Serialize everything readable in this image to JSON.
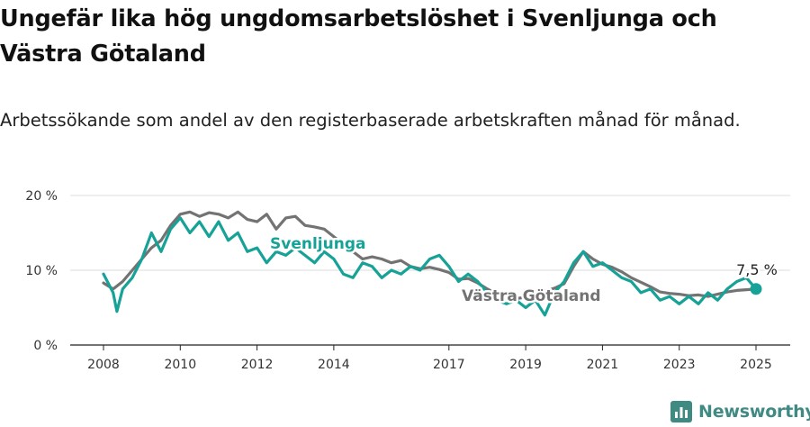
{
  "title": "Ungefär lika hög ungdomsarbetslöshet i Svenljunga och Västra Götaland",
  "subtitle": "Arbetssökande som andel av den registerbaserade arbetskraften månad för månad.",
  "brand": "Newsworthy",
  "colors": {
    "svenljunga": "#17a297",
    "vastra_gotaland": "#737373",
    "grid": "#dcdcdc",
    "axis": "#222222",
    "brand": "#3f8a83"
  },
  "chart_data": {
    "type": "line",
    "ylim": [
      0,
      20
    ],
    "xlim": [
      2007.5,
      2025.6
    ],
    "y_ticks": [
      {
        "value": 0,
        "label": "0 %"
      },
      {
        "value": 10,
        "label": "10 %"
      },
      {
        "value": 20,
        "label": "20 %"
      }
    ],
    "x_ticks": [
      {
        "value": 2008,
        "label": "2008"
      },
      {
        "value": 2010,
        "label": "2010"
      },
      {
        "value": 2012,
        "label": "2012"
      },
      {
        "value": 2014,
        "label": "2014"
      },
      {
        "value": 2017,
        "label": "2017"
      },
      {
        "value": 2019,
        "label": "2019"
      },
      {
        "value": 2021,
        "label": "2021"
      },
      {
        "value": 2023,
        "label": "2023"
      },
      {
        "value": 2025,
        "label": "2025"
      }
    ],
    "grid": true,
    "last_value_label": "7,5 %",
    "series": [
      {
        "name": "Västra Götaland",
        "key": "vastra_gotaland",
        "points": [
          [
            2008.0,
            8.3
          ],
          [
            2008.25,
            7.5
          ],
          [
            2008.5,
            8.5
          ],
          [
            2008.75,
            10.0
          ],
          [
            2009.0,
            11.5
          ],
          [
            2009.25,
            13.0
          ],
          [
            2009.5,
            14.0
          ],
          [
            2009.75,
            16.0
          ],
          [
            2010.0,
            17.5
          ],
          [
            2010.25,
            17.8
          ],
          [
            2010.5,
            17.2
          ],
          [
            2010.75,
            17.7
          ],
          [
            2011.0,
            17.5
          ],
          [
            2011.25,
            17.0
          ],
          [
            2011.5,
            17.8
          ],
          [
            2011.75,
            16.8
          ],
          [
            2012.0,
            16.5
          ],
          [
            2012.25,
            17.5
          ],
          [
            2012.5,
            15.5
          ],
          [
            2012.75,
            17.0
          ],
          [
            2013.0,
            17.2
          ],
          [
            2013.25,
            16.0
          ],
          [
            2013.5,
            15.8
          ],
          [
            2013.75,
            15.5
          ],
          [
            2014.0,
            14.5
          ],
          [
            2014.25,
            13.5
          ],
          [
            2014.5,
            12.5
          ],
          [
            2014.75,
            11.5
          ],
          [
            2015.0,
            11.8
          ],
          [
            2015.25,
            11.5
          ],
          [
            2015.5,
            11.0
          ],
          [
            2015.75,
            11.3
          ],
          [
            2016.0,
            10.5
          ],
          [
            2016.25,
            10.2
          ],
          [
            2016.5,
            10.4
          ],
          [
            2016.75,
            10.1
          ],
          [
            2017.0,
            9.7
          ],
          [
            2017.25,
            8.8
          ],
          [
            2017.5,
            8.9
          ],
          [
            2017.75,
            8.3
          ],
          [
            2018.0,
            7.5
          ],
          [
            2018.25,
            6.8
          ],
          [
            2018.5,
            6.5
          ],
          [
            2018.75,
            6.2
          ],
          [
            2019.0,
            6.4
          ],
          [
            2019.25,
            6.7
          ],
          [
            2019.5,
            7.2
          ],
          [
            2019.75,
            7.6
          ],
          [
            2020.0,
            8.2
          ],
          [
            2020.25,
            10.5
          ],
          [
            2020.5,
            12.5
          ],
          [
            2020.75,
            11.5
          ],
          [
            2021.0,
            10.8
          ],
          [
            2021.25,
            10.4
          ],
          [
            2021.5,
            9.8
          ],
          [
            2021.75,
            9.0
          ],
          [
            2022.0,
            8.4
          ],
          [
            2022.25,
            7.8
          ],
          [
            2022.5,
            7.1
          ],
          [
            2022.75,
            6.9
          ],
          [
            2023.0,
            6.8
          ],
          [
            2023.25,
            6.6
          ],
          [
            2023.5,
            6.7
          ],
          [
            2023.75,
            6.5
          ],
          [
            2024.0,
            6.8
          ],
          [
            2024.25,
            7.1
          ],
          [
            2024.5,
            7.3
          ],
          [
            2024.75,
            7.4
          ],
          [
            2025.0,
            7.5
          ]
        ],
        "label": "Västra Götaland"
      },
      {
        "name": "Svenljunga",
        "key": "svenljunga",
        "points": [
          [
            2008.0,
            9.5
          ],
          [
            2008.25,
            7.0
          ],
          [
            2008.35,
            4.5
          ],
          [
            2008.5,
            7.5
          ],
          [
            2008.75,
            9.0
          ],
          [
            2009.0,
            11.5
          ],
          [
            2009.25,
            15.0
          ],
          [
            2009.5,
            12.5
          ],
          [
            2009.75,
            15.5
          ],
          [
            2010.0,
            17.0
          ],
          [
            2010.25,
            15.0
          ],
          [
            2010.5,
            16.5
          ],
          [
            2010.75,
            14.5
          ],
          [
            2011.0,
            16.5
          ],
          [
            2011.25,
            14.0
          ],
          [
            2011.5,
            15.0
          ],
          [
            2011.75,
            12.5
          ],
          [
            2012.0,
            13.0
          ],
          [
            2012.25,
            11.0
          ],
          [
            2012.5,
            12.5
          ],
          [
            2012.75,
            12.0
          ],
          [
            2013.0,
            13.0
          ],
          [
            2013.25,
            12.0
          ],
          [
            2013.5,
            11.0
          ],
          [
            2013.75,
            12.5
          ],
          [
            2014.0,
            11.5
          ],
          [
            2014.25,
            9.5
          ],
          [
            2014.5,
            9.0
          ],
          [
            2014.75,
            11.0
          ],
          [
            2015.0,
            10.5
          ],
          [
            2015.25,
            9.0
          ],
          [
            2015.5,
            10.0
          ],
          [
            2015.75,
            9.5
          ],
          [
            2016.0,
            10.5
          ],
          [
            2016.25,
            10.0
          ],
          [
            2016.5,
            11.5
          ],
          [
            2016.75,
            12.0
          ],
          [
            2017.0,
            10.5
          ],
          [
            2017.25,
            8.5
          ],
          [
            2017.5,
            9.5
          ],
          [
            2017.75,
            8.5
          ],
          [
            2018.0,
            7.0
          ],
          [
            2018.25,
            6.0
          ],
          [
            2018.5,
            5.5
          ],
          [
            2018.75,
            6.0
          ],
          [
            2019.0,
            5.0
          ],
          [
            2019.25,
            6.0
          ],
          [
            2019.5,
            4.0
          ],
          [
            2019.75,
            7.0
          ],
          [
            2020.0,
            8.5
          ],
          [
            2020.25,
            11.0
          ],
          [
            2020.5,
            12.5
          ],
          [
            2020.75,
            10.5
          ],
          [
            2021.0,
            11.0
          ],
          [
            2021.25,
            10.0
          ],
          [
            2021.5,
            9.0
          ],
          [
            2021.75,
            8.5
          ],
          [
            2022.0,
            7.0
          ],
          [
            2022.25,
            7.5
          ],
          [
            2022.5,
            6.0
          ],
          [
            2022.75,
            6.5
          ],
          [
            2023.0,
            5.5
          ],
          [
            2023.25,
            6.5
          ],
          [
            2023.5,
            5.5
          ],
          [
            2023.75,
            7.0
          ],
          [
            2024.0,
            6.0
          ],
          [
            2024.25,
            7.5
          ],
          [
            2024.5,
            8.5
          ],
          [
            2024.75,
            9.0
          ],
          [
            2025.0,
            7.5
          ]
        ],
        "label": "Svenljunga"
      }
    ]
  }
}
